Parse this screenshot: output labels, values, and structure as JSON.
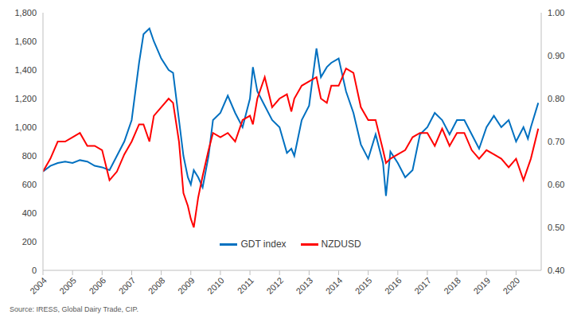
{
  "chart_data": {
    "type": "line",
    "source": "Source: IRESS, Global Dairy Trade, CIP.",
    "x": [
      2004.0,
      2004.25,
      2004.5,
      2004.75,
      2005.0,
      2005.25,
      2005.5,
      2005.75,
      2006.0,
      2006.25,
      2006.5,
      2006.75,
      2007.0,
      2007.25,
      2007.4,
      2007.6,
      2007.75,
      2008.0,
      2008.25,
      2008.4,
      2008.6,
      2008.75,
      2008.9,
      2009.0,
      2009.1,
      2009.25,
      2009.4,
      2009.6,
      2009.75,
      2010.0,
      2010.25,
      2010.5,
      2010.75,
      2011.0,
      2011.1,
      2011.25,
      2011.5,
      2011.75,
      2012.0,
      2012.25,
      2012.4,
      2012.5,
      2012.75,
      2013.0,
      2013.25,
      2013.4,
      2013.6,
      2013.75,
      2014.0,
      2014.25,
      2014.5,
      2014.75,
      2015.0,
      2015.25,
      2015.5,
      2015.6,
      2015.75,
      2016.0,
      2016.25,
      2016.5,
      2016.75,
      2017.0,
      2017.25,
      2017.5,
      2017.75,
      2018.0,
      2018.25,
      2018.5,
      2018.75,
      2019.0,
      2019.25,
      2019.5,
      2019.75,
      2020.0,
      2020.25,
      2020.4,
      2020.5,
      2020.75
    ],
    "series": [
      {
        "name": "GDT index",
        "color": "#0070c0",
        "axis": "y",
        "values": [
          690,
          730,
          750,
          760,
          750,
          770,
          760,
          730,
          720,
          700,
          800,
          900,
          1050,
          1450,
          1650,
          1690,
          1600,
          1480,
          1400,
          1380,
          1050,
          800,
          650,
          600,
          700,
          650,
          580,
          800,
          1050,
          1100,
          1220,
          1100,
          1000,
          1200,
          1420,
          1250,
          1150,
          1050,
          1000,
          820,
          850,
          800,
          1050,
          1150,
          1550,
          1350,
          1420,
          1450,
          1480,
          1250,
          1100,
          880,
          780,
          950,
          750,
          520,
          830,
          750,
          650,
          700,
          950,
          1000,
          1100,
          1050,
          950,
          1050,
          1050,
          950,
          850,
          1000,
          1080,
          1000,
          1050,
          900,
          1000,
          920,
          1000,
          1170
        ]
      },
      {
        "name": "NZDUSD",
        "color": "#ff0000",
        "axis": "y2",
        "values": [
          0.63,
          0.66,
          0.7,
          0.7,
          0.71,
          0.72,
          0.69,
          0.69,
          0.68,
          0.61,
          0.63,
          0.67,
          0.7,
          0.74,
          0.74,
          0.7,
          0.76,
          0.78,
          0.8,
          0.79,
          0.7,
          0.58,
          0.55,
          0.52,
          0.5,
          0.57,
          0.62,
          0.68,
          0.72,
          0.71,
          0.72,
          0.7,
          0.75,
          0.76,
          0.74,
          0.8,
          0.85,
          0.78,
          0.8,
          0.81,
          0.77,
          0.8,
          0.83,
          0.84,
          0.85,
          0.8,
          0.79,
          0.83,
          0.83,
          0.87,
          0.86,
          0.78,
          0.75,
          0.75,
          0.68,
          0.65,
          0.66,
          0.67,
          0.68,
          0.71,
          0.72,
          0.72,
          0.69,
          0.73,
          0.69,
          0.72,
          0.72,
          0.68,
          0.66,
          0.68,
          0.67,
          0.66,
          0.64,
          0.66,
          0.61,
          0.64,
          0.66,
          0.73
        ]
      }
    ],
    "xlim": [
      2004,
      2020.85
    ],
    "xticks": [
      2004,
      2005,
      2006,
      2007,
      2008,
      2009,
      2010,
      2011,
      2012,
      2013,
      2014,
      2015,
      2016,
      2017,
      2018,
      2019,
      2020
    ],
    "ylim": [
      0,
      1800
    ],
    "yticks": [
      0,
      200,
      400,
      600,
      800,
      {
        "value": 1000,
        "label": "1,000"
      },
      {
        "value": 1200,
        "label": "1,200"
      },
      {
        "value": 1400,
        "label": "1,400"
      },
      {
        "value": 1600,
        "label": "1,600"
      },
      {
        "value": 1800,
        "label": "1,800"
      }
    ],
    "y2lim": [
      0.4,
      1.0
    ],
    "y2ticks": [
      {
        "value": 0.4,
        "label": "0.40"
      },
      {
        "value": 0.5,
        "label": "0.50"
      },
      {
        "value": 0.6,
        "label": "0.60"
      },
      {
        "value": 0.7,
        "label": "0.70"
      },
      {
        "value": 0.8,
        "label": "0.80"
      },
      {
        "value": 0.9,
        "label": "0.90"
      },
      {
        "value": 1.0,
        "label": "1.00"
      }
    ],
    "grid": false,
    "legend": "bottom"
  }
}
